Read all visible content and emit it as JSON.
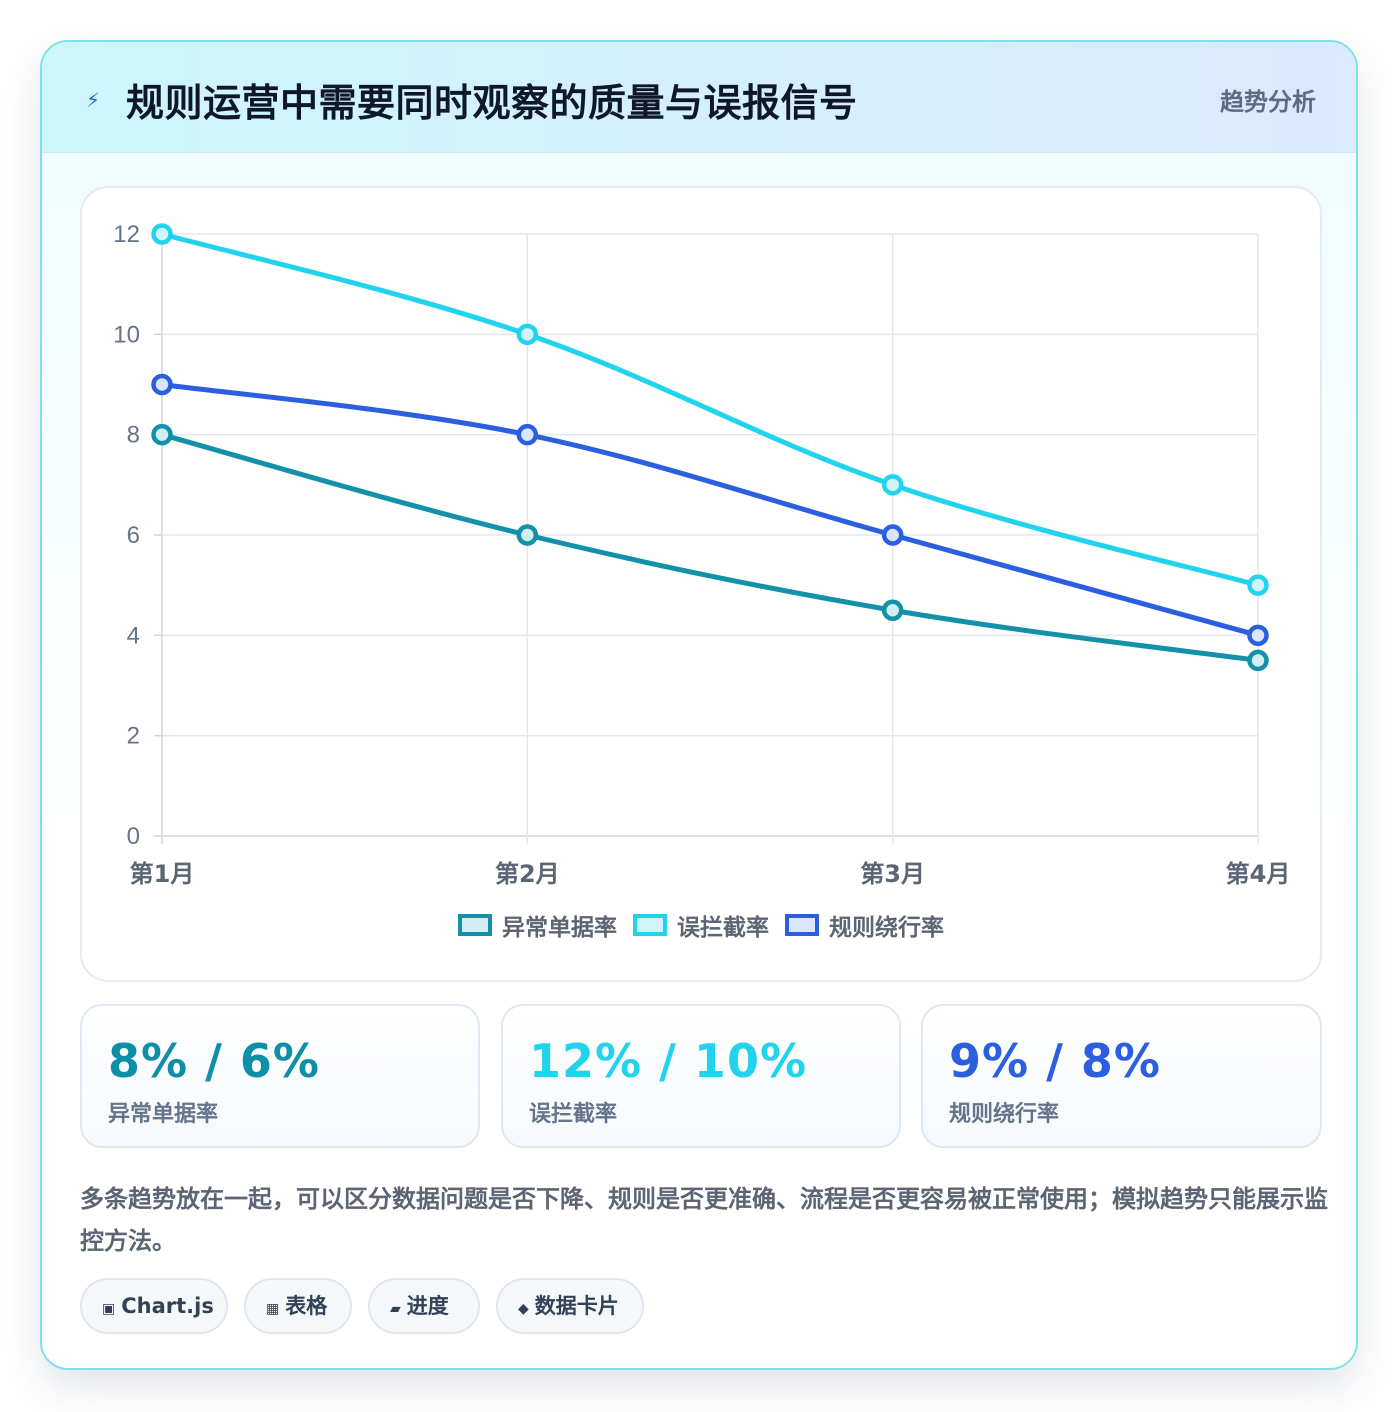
{
  "header": {
    "icon": "lightning-icon",
    "icon_glyph": "⚡",
    "title": "规则运营中需要同时观察的质量与误报信号",
    "badge": "趋势分析"
  },
  "chart_data": {
    "type": "line",
    "categories": [
      "第1月",
      "第2月",
      "第3月",
      "第4月"
    ],
    "ylim": [
      0,
      12
    ],
    "yticks": [
      0,
      2,
      4,
      6,
      8,
      10,
      12
    ],
    "grid": true,
    "legend_position": "bottom",
    "series": [
      {
        "name": "异常单据率",
        "values": [
          8,
          6,
          4.5,
          3.5
        ],
        "color": "#1391a8",
        "fill": "#d3eef3"
      },
      {
        "name": "误拦截率",
        "values": [
          12,
          10,
          7,
          5
        ],
        "color": "#22d3ee",
        "fill": "#cff5fb"
      },
      {
        "name": "规则绕行率",
        "values": [
          9,
          8,
          6,
          4
        ],
        "color": "#2b5fe0",
        "fill": "#dbe5fb"
      }
    ]
  },
  "stats": [
    {
      "value": "8% / 6%",
      "label": "异常单据率",
      "color": "#0e8fa7"
    },
    {
      "value": "12% / 10%",
      "label": "误拦截率",
      "color": "#22d3ee"
    },
    {
      "value": "9% / 8%",
      "label": "规则绕行率",
      "color": "#2b5fe0"
    }
  ],
  "note": "多条趋势放在一起，可以区分数据问题是否下降、规则是否更准确、流程是否更容易被正常使用；模拟趋势只能展示监控方法。",
  "chips": [
    {
      "icon": "chart-icon",
      "glyph": "▣",
      "label": "Chart.js"
    },
    {
      "icon": "table-icon",
      "glyph": "▦",
      "label": "表格"
    },
    {
      "icon": "progress-icon",
      "glyph": "▰",
      "label": "进度"
    },
    {
      "icon": "data-card-icon",
      "glyph": "◆",
      "label": "数据卡片"
    }
  ]
}
